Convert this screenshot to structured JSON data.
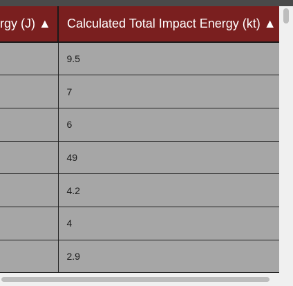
{
  "table": {
    "columns": [
      {
        "label": "rgy (J) ▲"
      },
      {
        "label": "Calculated Total Impact Energy (kt) ▲"
      }
    ],
    "rows": [
      [
        "",
        "9.5"
      ],
      [
        "",
        "7"
      ],
      [
        "",
        "6"
      ],
      [
        "",
        "49"
      ],
      [
        "",
        "4.2"
      ],
      [
        "",
        "4"
      ],
      [
        "",
        "2.9"
      ]
    ]
  },
  "colors": {
    "header_bg": "#7a1f1f",
    "header_text": "#ffffff",
    "cell_bg": "#a6a6a6",
    "border": "#202020",
    "scrollbar_track": "#f0f0f0",
    "scrollbar_thumb": "#bdbdbd"
  }
}
